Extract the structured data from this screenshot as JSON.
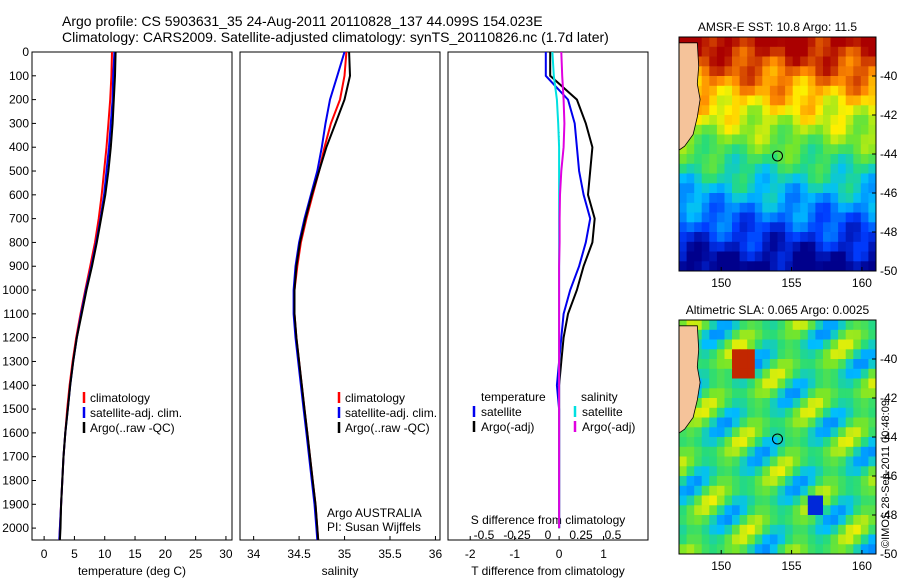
{
  "header": {
    "line1": "Argo profile: CS 5903631_35 24-Aug-2011 20110828_137 44.099S 154.023E",
    "line2": "Climatology: CARS2009. Satellite-adjusted climatology: synTS_20110826.nc (1.7d later)"
  },
  "credit": "©IMOS 28-Sep-2011 00:48:09",
  "colors": {
    "climatology": "#ff0000",
    "satellite": "#0000ee",
    "argo": "#000000",
    "salinity_satellite": "#00e0e0",
    "salinity_argo": "#e000e0",
    "marker": "#000000"
  },
  "chart_data": [
    {
      "type": "line",
      "xlabel": "temperature (deg C)",
      "ylabel": "",
      "xlim": [
        -2,
        31
      ],
      "ylim": [
        2050,
        0
      ],
      "xticks": [
        "0",
        "5",
        "10",
        "15",
        "20",
        "25",
        "30"
      ],
      "yticks": [
        "0",
        "100",
        "200",
        "300",
        "400",
        "500",
        "600",
        "700",
        "800",
        "900",
        "1000",
        "1100",
        "1200",
        "1300",
        "1400",
        "1500",
        "1600",
        "1700",
        "1800",
        "1900",
        "2000"
      ],
      "legend": [
        "climatology",
        "satellite-adj. clim.",
        "Argo(..raw -QC)"
      ],
      "series": [
        {
          "name": "climatology",
          "color": "#ff0000",
          "x": [
            11.2,
            11.1,
            10.9,
            10.6,
            10.3,
            9.9,
            9.5,
            9.0,
            8.4,
            7.6,
            6.8,
            6.0,
            5.3,
            4.7,
            4.2,
            3.8,
            3.5,
            3.2,
            3.0,
            2.8,
            2.6,
            2.5
          ],
          "y": [
            0,
            100,
            200,
            300,
            400,
            500,
            600,
            700,
            800,
            900,
            1000,
            1100,
            1200,
            1300,
            1400,
            1500,
            1600,
            1700,
            1800,
            1900,
            2000,
            2050
          ]
        },
        {
          "name": "satellite-adj. clim.",
          "color": "#0000ee",
          "x": [
            11.6,
            11.4,
            11.3,
            11.0,
            10.7,
            10.3,
            9.9,
            9.3,
            8.6,
            7.8,
            6.9,
            6.1,
            5.4,
            4.8,
            4.3,
            3.9,
            3.5,
            3.2,
            3.0,
            2.8,
            2.6,
            2.5
          ],
          "y": [
            0,
            100,
            200,
            300,
            400,
            500,
            600,
            700,
            800,
            900,
            1000,
            1100,
            1200,
            1300,
            1400,
            1500,
            1600,
            1700,
            1800,
            1900,
            2000,
            2050
          ]
        },
        {
          "name": "Argo(..raw -QC)",
          "color": "#000000",
          "x": [
            11.8,
            11.7,
            11.5,
            11.3,
            11.0,
            10.6,
            10.1,
            9.4,
            8.7,
            7.9,
            7.0,
            6.2,
            5.4,
            4.8,
            4.3,
            3.9,
            3.5,
            3.2,
            3.0,
            2.8,
            2.7,
            2.6
          ],
          "y": [
            0,
            100,
            200,
            300,
            400,
            500,
            600,
            700,
            800,
            900,
            1000,
            1100,
            1200,
            1300,
            1400,
            1500,
            1600,
            1700,
            1800,
            1900,
            2000,
            2050
          ]
        }
      ]
    },
    {
      "type": "line",
      "xlabel": "salinity",
      "ylabel": "",
      "xlim": [
        33.85,
        36.05
      ],
      "ylim": [
        2050,
        0
      ],
      "xticks": [
        "34",
        "34.5",
        "35",
        "35.5",
        "36"
      ],
      "legend": [
        "climatology",
        "satellite-adj. clim.",
        "Argo(..raw -QC)"
      ],
      "annotation": [
        "Argo AUSTRALIA",
        "PI: Susan Wijffels"
      ],
      "series": [
        {
          "name": "climatology",
          "color": "#ff0000",
          "x": [
            35.02,
            35.0,
            34.95,
            34.85,
            34.78,
            34.72,
            34.65,
            34.58,
            34.52,
            34.48,
            34.45,
            34.45,
            34.47,
            34.5,
            34.53,
            34.56,
            34.59,
            34.62,
            34.65,
            34.68,
            34.7,
            34.71
          ],
          "y": [
            0,
            100,
            200,
            300,
            400,
            500,
            600,
            700,
            800,
            900,
            1000,
            1100,
            1200,
            1300,
            1400,
            1500,
            1600,
            1700,
            1800,
            1900,
            2000,
            2050
          ]
        },
        {
          "name": "satellite-adj. clim.",
          "color": "#0000ee",
          "x": [
            35.0,
            34.92,
            34.84,
            34.79,
            34.75,
            34.7,
            34.63,
            34.56,
            34.5,
            34.46,
            34.44,
            34.44,
            34.46,
            34.49,
            34.52,
            34.55,
            34.58,
            34.61,
            34.64,
            34.67,
            34.69,
            34.7
          ],
          "y": [
            0,
            100,
            200,
            300,
            400,
            500,
            600,
            700,
            800,
            900,
            1000,
            1100,
            1200,
            1300,
            1400,
            1500,
            1600,
            1700,
            1800,
            1900,
            2000,
            2050
          ]
        },
        {
          "name": "Argo(..raw -QC)",
          "color": "#000000",
          "x": [
            35.05,
            35.06,
            35.0,
            34.9,
            34.8,
            34.72,
            34.64,
            34.57,
            34.51,
            34.47,
            34.45,
            34.45,
            34.47,
            34.5,
            34.53,
            34.56,
            34.59,
            34.62,
            34.65,
            34.68,
            34.7,
            34.71
          ],
          "y": [
            0,
            100,
            200,
            300,
            400,
            500,
            600,
            700,
            800,
            900,
            1000,
            1100,
            1200,
            1300,
            1400,
            1500,
            1600,
            1700,
            1800,
            1900,
            2000,
            2050
          ]
        }
      ]
    },
    {
      "type": "line",
      "xlabel": "T difference from climatology",
      "x2label": "S difference from climatology",
      "xlim": [
        -2.5,
        2.0
      ],
      "ylim": [
        2050,
        0
      ],
      "xticks": [
        "-2",
        "-1",
        "0",
        "1"
      ],
      "x2ticks": [
        "-0.5",
        "-0.25",
        "0",
        "0.25",
        "0.5"
      ],
      "legend": {
        "temperature_heading": "temperature",
        "salinity_heading": "salinity",
        "t_satellite": "satellite",
        "t_argo": "Argo(-adj)",
        "s_satellite": "satellite",
        "s_argo": "Argo(-adj)"
      },
      "series": [
        {
          "name": "temperature satellite",
          "color": "#0000ee",
          "x": [
            -0.3,
            -0.3,
            0.2,
            0.35,
            0.4,
            0.45,
            0.55,
            0.7,
            0.6,
            0.45,
            0.25,
            0.1,
            0.05,
            0.0,
            -0.05,
            0.0,
            0.0,
            0.0,
            0.0,
            0.0,
            0.0
          ],
          "y": [
            0,
            100,
            200,
            300,
            400,
            500,
            600,
            700,
            800,
            900,
            1000,
            1100,
            1200,
            1300,
            1400,
            1500,
            1600,
            1700,
            1800,
            1900,
            2000
          ]
        },
        {
          "name": "temperature Argo(-adj)",
          "color": "#000000",
          "x": [
            -0.2,
            -0.2,
            0.4,
            0.6,
            0.75,
            0.7,
            0.65,
            0.8,
            0.75,
            0.55,
            0.4,
            0.2,
            0.1,
            0.05,
            0.0,
            0.0,
            0.0,
            0.0,
            0.0,
            0.0,
            0.0
          ],
          "y": [
            0,
            100,
            200,
            300,
            400,
            500,
            600,
            700,
            800,
            900,
            1000,
            1100,
            1200,
            1300,
            1400,
            1500,
            1600,
            1700,
            1800,
            1900,
            2000
          ]
        },
        {
          "name": "salinity satellite",
          "color": "#00e0e0",
          "x": [
            -0.15,
            -0.12,
            -0.05,
            -0.02,
            0.0,
            0.0,
            0.0,
            0.0,
            0.0,
            0.0,
            0.0,
            0.0,
            0.0,
            0.0,
            0.0,
            0.0,
            0.0,
            0.0,
            0.0,
            0.0,
            0.0
          ],
          "y": [
            0,
            100,
            200,
            300,
            400,
            500,
            600,
            700,
            800,
            900,
            1000,
            1100,
            1200,
            1300,
            1400,
            1500,
            1600,
            1700,
            1800,
            1900,
            2000
          ]
        },
        {
          "name": "salinity Argo(-adj)",
          "color": "#e000e0",
          "x": [
            0.05,
            0.07,
            0.1,
            0.12,
            0.1,
            0.05,
            0.02,
            0.01,
            0.01,
            0.0,
            0.0,
            0.0,
            0.0,
            0.0,
            0.0,
            0.0,
            0.0,
            0.0,
            0.0,
            0.0,
            0.0
          ],
          "y": [
            0,
            100,
            200,
            300,
            400,
            500,
            600,
            700,
            800,
            900,
            1000,
            1100,
            1200,
            1300,
            1400,
            1500,
            1600,
            1700,
            1800,
            1900,
            2000
          ]
        }
      ]
    },
    {
      "type": "heatmap",
      "title": "AMSR-E SST: 10.8 Argo: 11.5",
      "xlim": [
        147,
        161
      ],
      "ylim": [
        -50,
        -38
      ],
      "xticks": [
        "150",
        "155",
        "160"
      ],
      "yticks": [
        "-40",
        "-42",
        "-44",
        "-46",
        "-48",
        "-50"
      ],
      "marker": {
        "lon": 154.0,
        "lat": -44.1
      }
    },
    {
      "type": "heatmap",
      "title": "Altimetric SLA: 0.065 Argo: 0.0025",
      "xlim": [
        147,
        161
      ],
      "ylim": [
        -50,
        -38
      ],
      "xticks": [
        "150",
        "155",
        "160"
      ],
      "yticks": [
        "-40",
        "-42",
        "-44",
        "-46",
        "-48",
        "-50"
      ],
      "marker": {
        "lon": 154.0,
        "lat": -44.1
      }
    }
  ]
}
